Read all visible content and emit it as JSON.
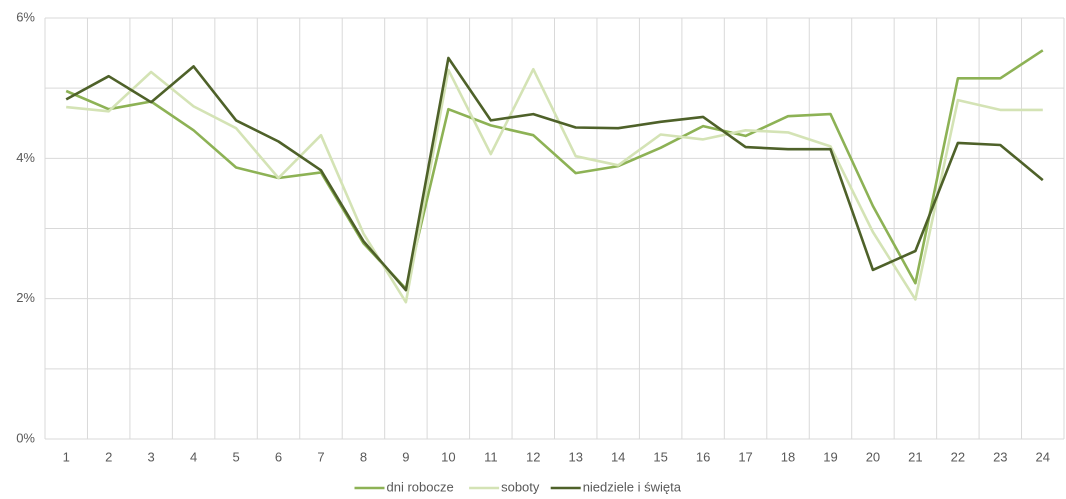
{
  "chart_data": {
    "type": "line",
    "categories": [
      "1",
      "2",
      "3",
      "4",
      "5",
      "6",
      "7",
      "8",
      "9",
      "10",
      "11",
      "12",
      "13",
      "14",
      "15",
      "16",
      "17",
      "18",
      "19",
      "20",
      "21",
      "22",
      "23",
      "24"
    ],
    "series": [
      {
        "name": "dni robocze",
        "color": "#8db255",
        "values": [
          4.96,
          4.7,
          4.81,
          4.4,
          3.87,
          3.72,
          3.8,
          2.79,
          2.14,
          4.7,
          4.47,
          4.33,
          3.79,
          3.89,
          4.15,
          4.46,
          4.32,
          4.6,
          4.63,
          3.32,
          2.22,
          5.14,
          5.14,
          5.54
        ]
      },
      {
        "name": "soboty",
        "color": "#d4e3b5",
        "values": [
          4.73,
          4.67,
          5.23,
          4.74,
          4.43,
          3.72,
          4.33,
          2.93,
          1.95,
          5.26,
          4.06,
          5.27,
          4.03,
          3.9,
          4.34,
          4.27,
          4.4,
          4.37,
          4.17,
          2.95,
          1.99,
          4.83,
          4.69,
          4.69
        ]
      },
      {
        "name": "niedziele i święta",
        "color": "#4e6129",
        "values": [
          4.84,
          5.17,
          4.8,
          5.31,
          4.54,
          4.24,
          3.83,
          2.82,
          2.12,
          5.43,
          4.54,
          4.63,
          4.44,
          4.43,
          4.52,
          4.59,
          4.16,
          4.13,
          4.13,
          2.41,
          2.68,
          4.22,
          4.19,
          3.69
        ]
      }
    ],
    "ylim": [
      0,
      6
    ],
    "yticks": [
      {
        "value": 0,
        "label": "0%"
      },
      {
        "value": 2,
        "label": "2%"
      },
      {
        "value": 4,
        "label": "4%"
      },
      {
        "value": 6,
        "label": "6%"
      }
    ],
    "ygrid": [
      0,
      1,
      2,
      3,
      4,
      5,
      6
    ],
    "grid": true,
    "legend": "bottom"
  }
}
